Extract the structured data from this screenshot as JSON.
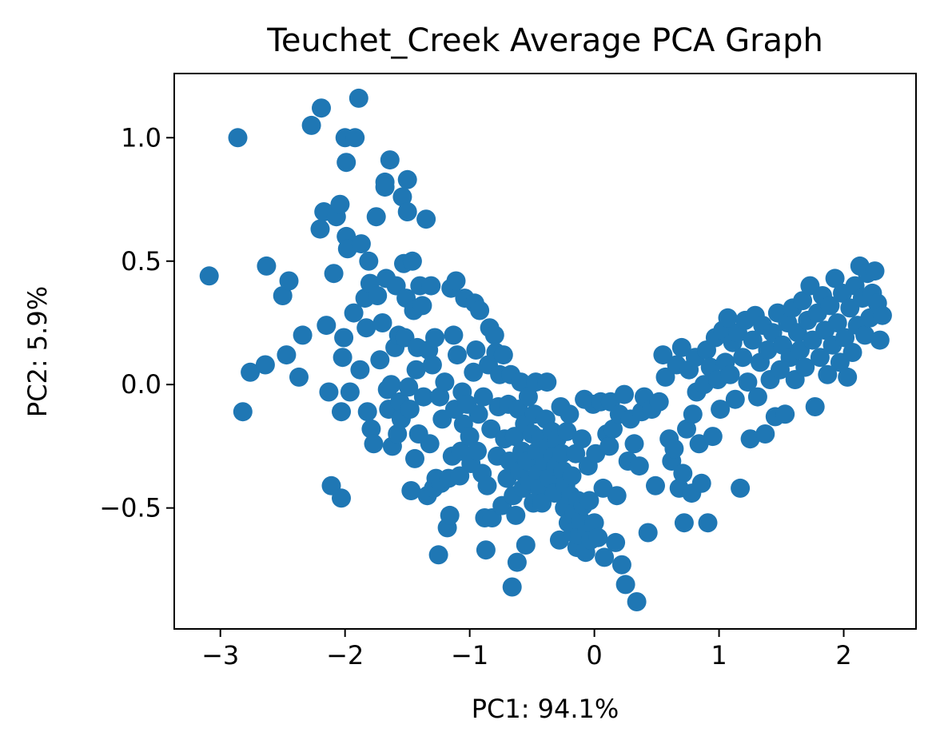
{
  "chart_data": {
    "type": "scatter",
    "title": "Teuchet_Creek Average PCA Graph",
    "xlabel": "PC1: 94.1%",
    "ylabel": "PC2: 5.9%",
    "xlim": [
      -3.37,
      2.58
    ],
    "ylim": [
      -0.99,
      1.26
    ],
    "xticks": [
      -3,
      -2,
      -1,
      0,
      1,
      2
    ],
    "xtick_labels": [
      "−3",
      "−2",
      "−1",
      "0",
      "1",
      "2"
    ],
    "yticks": [
      -0.5,
      0.0,
      0.5,
      1.0
    ],
    "ytick_labels": [
      "−0.5",
      "0.0",
      "0.5",
      "1.0"
    ],
    "grid": false,
    "marker_color": "#1f77b4",
    "points": [
      [
        -3.09,
        0.44
      ],
      [
        -2.86,
        1.0
      ],
      [
        -2.82,
        -0.11
      ],
      [
        -2.76,
        0.05
      ],
      [
        -2.64,
        0.08
      ],
      [
        -2.63,
        0.48
      ],
      [
        -2.5,
        0.36
      ],
      [
        -2.47,
        0.12
      ],
      [
        -2.45,
        0.42
      ],
      [
        -2.37,
        0.03
      ],
      [
        -2.34,
        0.2
      ],
      [
        -2.27,
        1.05
      ],
      [
        -2.2,
        0.63
      ],
      [
        -2.19,
        1.12
      ],
      [
        -2.17,
        0.7
      ],
      [
        -2.15,
        0.24
      ],
      [
        -2.13,
        -0.03
      ],
      [
        -2.11,
        -0.41
      ],
      [
        -2.09,
        0.45
      ],
      [
        -2.07,
        0.68
      ],
      [
        -2.04,
        0.73
      ],
      [
        -2.03,
        -0.11
      ],
      [
        -2.03,
        -0.46
      ],
      [
        -2.02,
        0.11
      ],
      [
        -2.01,
        0.19
      ],
      [
        -2.0,
        1.0
      ],
      [
        -1.99,
        0.6
      ],
      [
        -1.99,
        0.9
      ],
      [
        -1.98,
        0.55
      ],
      [
        -1.96,
        -0.03
      ],
      [
        -1.93,
        0.29
      ],
      [
        -1.92,
        1.0
      ],
      [
        -1.89,
        1.16
      ],
      [
        -1.88,
        0.06
      ],
      [
        -1.87,
        0.57
      ],
      [
        -1.84,
        0.35
      ],
      [
        -1.83,
        0.23
      ],
      [
        -1.82,
        -0.11
      ],
      [
        -1.81,
        0.5
      ],
      [
        -1.8,
        0.41
      ],
      [
        -1.79,
        -0.18
      ],
      [
        -1.77,
        -0.24
      ],
      [
        -1.75,
        0.68
      ],
      [
        -1.74,
        0.36
      ],
      [
        -1.72,
        0.1
      ],
      [
        -1.7,
        0.25
      ],
      [
        -1.68,
        0.82
      ],
      [
        -1.68,
        0.8
      ],
      [
        -1.67,
        0.43
      ],
      [
        -1.66,
        -0.02
      ],
      [
        -1.65,
        -0.1
      ],
      [
        -1.64,
        0.91
      ],
      [
        -1.63,
        0.0
      ],
      [
        -1.62,
        -0.25
      ],
      [
        -1.6,
        0.15
      ],
      [
        -1.59,
        0.4
      ],
      [
        -1.58,
        -0.2
      ],
      [
        -1.57,
        0.2
      ],
      [
        -1.56,
        -0.07
      ],
      [
        -1.55,
        -0.14
      ],
      [
        -1.54,
        0.76
      ],
      [
        -1.53,
        0.49
      ],
      [
        -1.52,
        0.19
      ],
      [
        -1.51,
        0.35
      ],
      [
        -1.5,
        0.83
      ],
      [
        -1.5,
        0.7
      ],
      [
        -1.49,
        -0.01
      ],
      [
        -1.48,
        -0.1
      ],
      [
        -1.47,
        -0.43
      ],
      [
        -1.46,
        0.5
      ],
      [
        -1.45,
        0.3
      ],
      [
        -1.44,
        -0.3
      ],
      [
        -1.43,
        0.06
      ],
      [
        -1.42,
        0.15
      ],
      [
        -1.41,
        -0.2
      ],
      [
        -1.4,
        0.4
      ],
      [
        -1.38,
        0.32
      ],
      [
        -1.37,
        -0.05
      ],
      [
        -1.35,
        0.67
      ],
      [
        -1.34,
        -0.45
      ],
      [
        -1.33,
        0.14
      ],
      [
        -1.32,
        -0.24
      ],
      [
        -1.31,
        0.4
      ],
      [
        -1.3,
        0.08
      ],
      [
        -1.29,
        -0.42
      ],
      [
        -1.28,
        0.19
      ],
      [
        -1.27,
        -0.38
      ],
      [
        -1.25,
        -0.69
      ],
      [
        -1.24,
        -0.05
      ],
      [
        -1.23,
        -0.4
      ],
      [
        -1.22,
        -0.14
      ],
      [
        -1.2,
        0.01
      ],
      [
        -1.18,
        -0.58
      ],
      [
        -1.17,
        -0.38
      ],
      [
        -1.16,
        -0.53
      ],
      [
        -1.15,
        0.39
      ],
      [
        -1.14,
        -0.29
      ],
      [
        -1.13,
        0.2
      ],
      [
        -1.12,
        -0.1
      ],
      [
        -1.11,
        0.42
      ],
      [
        -1.1,
        0.12
      ],
      [
        -1.08,
        -0.37
      ],
      [
        -1.07,
        -0.27
      ],
      [
        -1.06,
        -0.03
      ],
      [
        -1.05,
        -0.16
      ],
      [
        -1.04,
        0.35
      ],
      [
        -1.02,
        -0.08
      ],
      [
        -1.0,
        -0.21
      ],
      [
        -0.99,
        -0.32
      ],
      [
        -0.97,
        0.05
      ],
      [
        -0.96,
        0.33
      ],
      [
        -0.95,
        0.14
      ],
      [
        -0.94,
        -0.27
      ],
      [
        -0.93,
        -0.12
      ],
      [
        -0.92,
        0.3
      ],
      [
        -0.9,
        -0.36
      ],
      [
        -0.89,
        -0.05
      ],
      [
        -0.88,
        -0.54
      ],
      [
        -0.87,
        -0.67
      ],
      [
        -0.86,
        -0.41
      ],
      [
        -0.85,
        0.08
      ],
      [
        -0.84,
        0.23
      ],
      [
        -0.83,
        -0.18
      ],
      [
        -0.82,
        -0.54
      ],
      [
        -0.8,
        0.2
      ],
      [
        -0.79,
        0.13
      ],
      [
        -0.78,
        -0.29
      ],
      [
        -0.77,
        -0.09
      ],
      [
        -0.76,
        0.04
      ],
      [
        -0.74,
        -0.49
      ],
      [
        -0.73,
        0.12
      ],
      [
        -0.72,
        -0.22
      ],
      [
        -0.7,
        -0.38
      ],
      [
        -0.69,
        -0.08
      ],
      [
        -0.68,
        -0.31
      ],
      [
        -0.67,
        0.04
      ],
      [
        -0.66,
        -0.82
      ],
      [
        -0.65,
        -0.45
      ],
      [
        -0.64,
        -0.21
      ],
      [
        -0.63,
        -0.53
      ],
      [
        -0.62,
        -0.72
      ],
      [
        -0.61,
        -0.1
      ],
      [
        -0.6,
        -0.35
      ],
      [
        -0.59,
        0.01
      ],
      [
        -0.58,
        -0.27
      ],
      [
        -0.57,
        -0.42
      ],
      [
        -0.56,
        -0.16
      ],
      [
        -0.55,
        -0.65
      ],
      [
        -0.54,
        -0.31
      ],
      [
        -0.53,
        -0.05
      ],
      [
        -0.52,
        -0.39
      ],
      [
        -0.5,
        -0.2
      ],
      [
        -0.49,
        -0.48
      ],
      [
        -0.48,
        -0.12
      ],
      [
        -0.47,
        0.01
      ],
      [
        -0.46,
        -0.27
      ],
      [
        -0.45,
        -0.36
      ],
      [
        -0.44,
        -0.42
      ],
      [
        -0.43,
        -0.22
      ],
      [
        -0.42,
        -0.48
      ],
      [
        -0.4,
        -0.31
      ],
      [
        -0.39,
        -0.14
      ],
      [
        -0.38,
        0.01
      ],
      [
        -0.37,
        -0.25
      ],
      [
        -0.36,
        -0.38
      ],
      [
        -0.34,
        -0.19
      ],
      [
        -0.33,
        -0.29
      ],
      [
        -0.32,
        -0.44
      ],
      [
        -0.31,
        -0.33
      ],
      [
        -0.3,
        -0.22
      ],
      [
        -0.28,
        -0.63
      ],
      [
        -0.27,
        -0.09
      ],
      [
        -0.26,
        -0.28
      ],
      [
        -0.25,
        -0.35
      ],
      [
        -0.24,
        -0.5
      ],
      [
        -0.23,
        -0.41
      ],
      [
        -0.22,
        -0.19
      ],
      [
        -0.21,
        -0.56
      ],
      [
        -0.2,
        -0.12
      ],
      [
        -0.19,
        -0.45
      ],
      [
        -0.18,
        -0.37
      ],
      [
        -0.17,
        -0.6
      ],
      [
        -0.16,
        -0.52
      ],
      [
        -0.15,
        -0.28
      ],
      [
        -0.14,
        -0.66
      ],
      [
        -0.13,
        -0.47
      ],
      [
        -0.12,
        -0.61
      ],
      [
        -0.11,
        -0.55
      ],
      [
        -0.1,
        -0.22
      ],
      [
        -0.09,
        -0.49
      ],
      [
        -0.08,
        -0.06
      ],
      [
        -0.07,
        -0.68
      ],
      [
        -0.06,
        -0.59
      ],
      [
        -0.05,
        -0.33
      ],
      [
        -0.04,
        -0.47
      ],
      [
        -0.03,
        -0.63
      ],
      [
        -0.01,
        -0.08
      ],
      [
        0.0,
        -0.56
      ],
      [
        0.01,
        -0.28
      ],
      [
        0.03,
        -0.62
      ],
      [
        0.05,
        -0.07
      ],
      [
        0.07,
        -0.42
      ],
      [
        0.08,
        -0.7
      ],
      [
        0.1,
        -0.2
      ],
      [
        0.12,
        -0.25
      ],
      [
        0.13,
        -0.07
      ],
      [
        0.15,
        -0.18
      ],
      [
        0.17,
        -0.64
      ],
      [
        0.18,
        -0.45
      ],
      [
        0.2,
        -0.12
      ],
      [
        0.22,
        -0.73
      ],
      [
        0.24,
        -0.04
      ],
      [
        0.25,
        -0.81
      ],
      [
        0.27,
        -0.31
      ],
      [
        0.29,
        -0.14
      ],
      [
        0.32,
        -0.24
      ],
      [
        0.34,
        -0.88
      ],
      [
        0.36,
        -0.33
      ],
      [
        0.38,
        -0.11
      ],
      [
        0.4,
        -0.05
      ],
      [
        0.43,
        -0.6
      ],
      [
        0.46,
        -0.1
      ],
      [
        0.49,
        -0.41
      ],
      [
        0.52,
        -0.07
      ],
      [
        0.55,
        0.12
      ],
      [
        0.57,
        0.03
      ],
      [
        0.6,
        -0.22
      ],
      [
        0.62,
        -0.31
      ],
      [
        0.64,
        -0.26
      ],
      [
        0.66,
        0.08
      ],
      [
        0.68,
        -0.42
      ],
      [
        0.7,
        0.15
      ],
      [
        0.71,
        -0.36
      ],
      [
        0.72,
        -0.56
      ],
      [
        0.74,
        -0.18
      ],
      [
        0.76,
        0.06
      ],
      [
        0.78,
        -0.44
      ],
      [
        0.79,
        -0.12
      ],
      [
        0.81,
        0.11
      ],
      [
        0.82,
        -0.03
      ],
      [
        0.84,
        -0.24
      ],
      [
        0.86,
        -0.4
      ],
      [
        0.88,
        0.0
      ],
      [
        0.9,
        0.14
      ],
      [
        0.91,
        -0.56
      ],
      [
        0.93,
        0.07
      ],
      [
        0.95,
        -0.21
      ],
      [
        0.97,
        0.19
      ],
      [
        0.99,
        0.02
      ],
      [
        1.01,
        -0.1
      ],
      [
        1.03,
        0.22
      ],
      [
        1.05,
        0.09
      ],
      [
        1.07,
        0.27
      ],
      [
        1.09,
        0.04
      ],
      [
        1.11,
        0.17
      ],
      [
        1.13,
        -0.06
      ],
      [
        1.15,
        0.21
      ],
      [
        1.17,
        -0.42
      ],
      [
        1.19,
        0.11
      ],
      [
        1.21,
        0.26
      ],
      [
        1.23,
        0.01
      ],
      [
        1.25,
        -0.22
      ],
      [
        1.27,
        0.18
      ],
      [
        1.29,
        0.28
      ],
      [
        1.31,
        -0.05
      ],
      [
        1.33,
        0.09
      ],
      [
        1.35,
        0.24
      ],
      [
        1.37,
        -0.2
      ],
      [
        1.39,
        0.14
      ],
      [
        1.41,
        0.02
      ],
      [
        1.43,
        0.21
      ],
      [
        1.45,
        -0.13
      ],
      [
        1.47,
        0.29
      ],
      [
        1.49,
        0.06
      ],
      [
        1.51,
        0.16
      ],
      [
        1.53,
        -0.12
      ],
      [
        1.55,
        0.25
      ],
      [
        1.57,
        0.11
      ],
      [
        1.59,
        0.31
      ],
      [
        1.61,
        0.02
      ],
      [
        1.63,
        0.21
      ],
      [
        1.65,
        0.14
      ],
      [
        1.67,
        0.34
      ],
      [
        1.69,
        0.07
      ],
      [
        1.71,
        0.26
      ],
      [
        1.73,
        0.4
      ],
      [
        1.75,
        0.18
      ],
      [
        1.77,
        -0.09
      ],
      [
        1.79,
        0.29
      ],
      [
        1.81,
        0.11
      ],
      [
        1.83,
        0.36
      ],
      [
        1.85,
        0.22
      ],
      [
        1.87,
        0.04
      ],
      [
        1.89,
        0.32
      ],
      [
        1.91,
        0.16
      ],
      [
        1.93,
        0.43
      ],
      [
        1.95,
        0.25
      ],
      [
        1.97,
        0.09
      ],
      [
        1.99,
        0.37
      ],
      [
        2.01,
        0.19
      ],
      [
        2.03,
        0.03
      ],
      [
        2.05,
        0.31
      ],
      [
        2.07,
        0.13
      ],
      [
        2.09,
        0.4
      ],
      [
        2.11,
        0.24
      ],
      [
        2.13,
        0.48
      ],
      [
        2.15,
        0.35
      ],
      [
        2.17,
        0.2
      ],
      [
        2.19,
        0.45
      ],
      [
        2.21,
        0.27
      ],
      [
        2.23,
        0.37
      ],
      [
        2.25,
        0.46
      ],
      [
        2.27,
        0.33
      ],
      [
        2.29,
        0.18
      ],
      [
        2.31,
        0.28
      ]
    ]
  }
}
